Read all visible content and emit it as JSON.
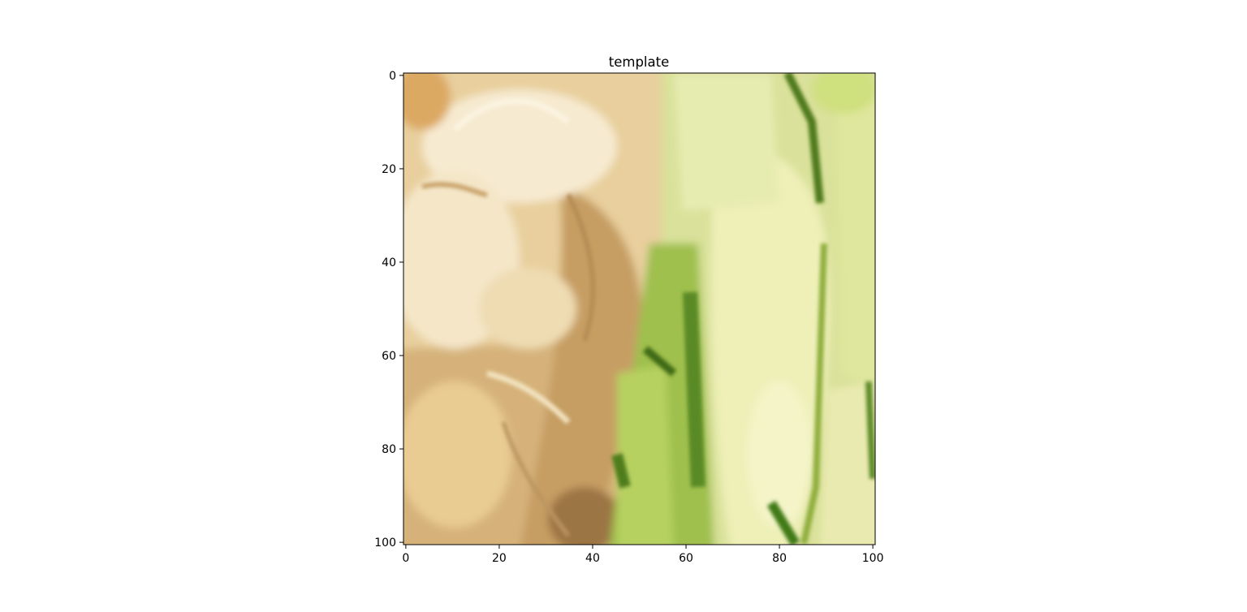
{
  "chart_data": {
    "type": "heatmap",
    "title": "template",
    "xlabel": "",
    "ylabel": "",
    "image_content": "close-up photo: tan/cream fur on the left half, pale green leaves/stems on the right half",
    "xlim": [
      0,
      101
    ],
    "ylim": [
      101,
      0
    ],
    "y_axis_inverted": true,
    "x_ticks": [
      0,
      20,
      40,
      60,
      80,
      100
    ],
    "y_ticks": [
      0,
      20,
      40,
      60,
      80,
      100
    ],
    "grid": false,
    "colors": {
      "fur_light": "#f3e3bd",
      "fur_mid": "#dcbc83",
      "fur_dark": "#b58d55",
      "leaf_light": "#eef0b8",
      "leaf_mid": "#c8d97d",
      "leaf_dark": "#5f8a2a"
    }
  }
}
